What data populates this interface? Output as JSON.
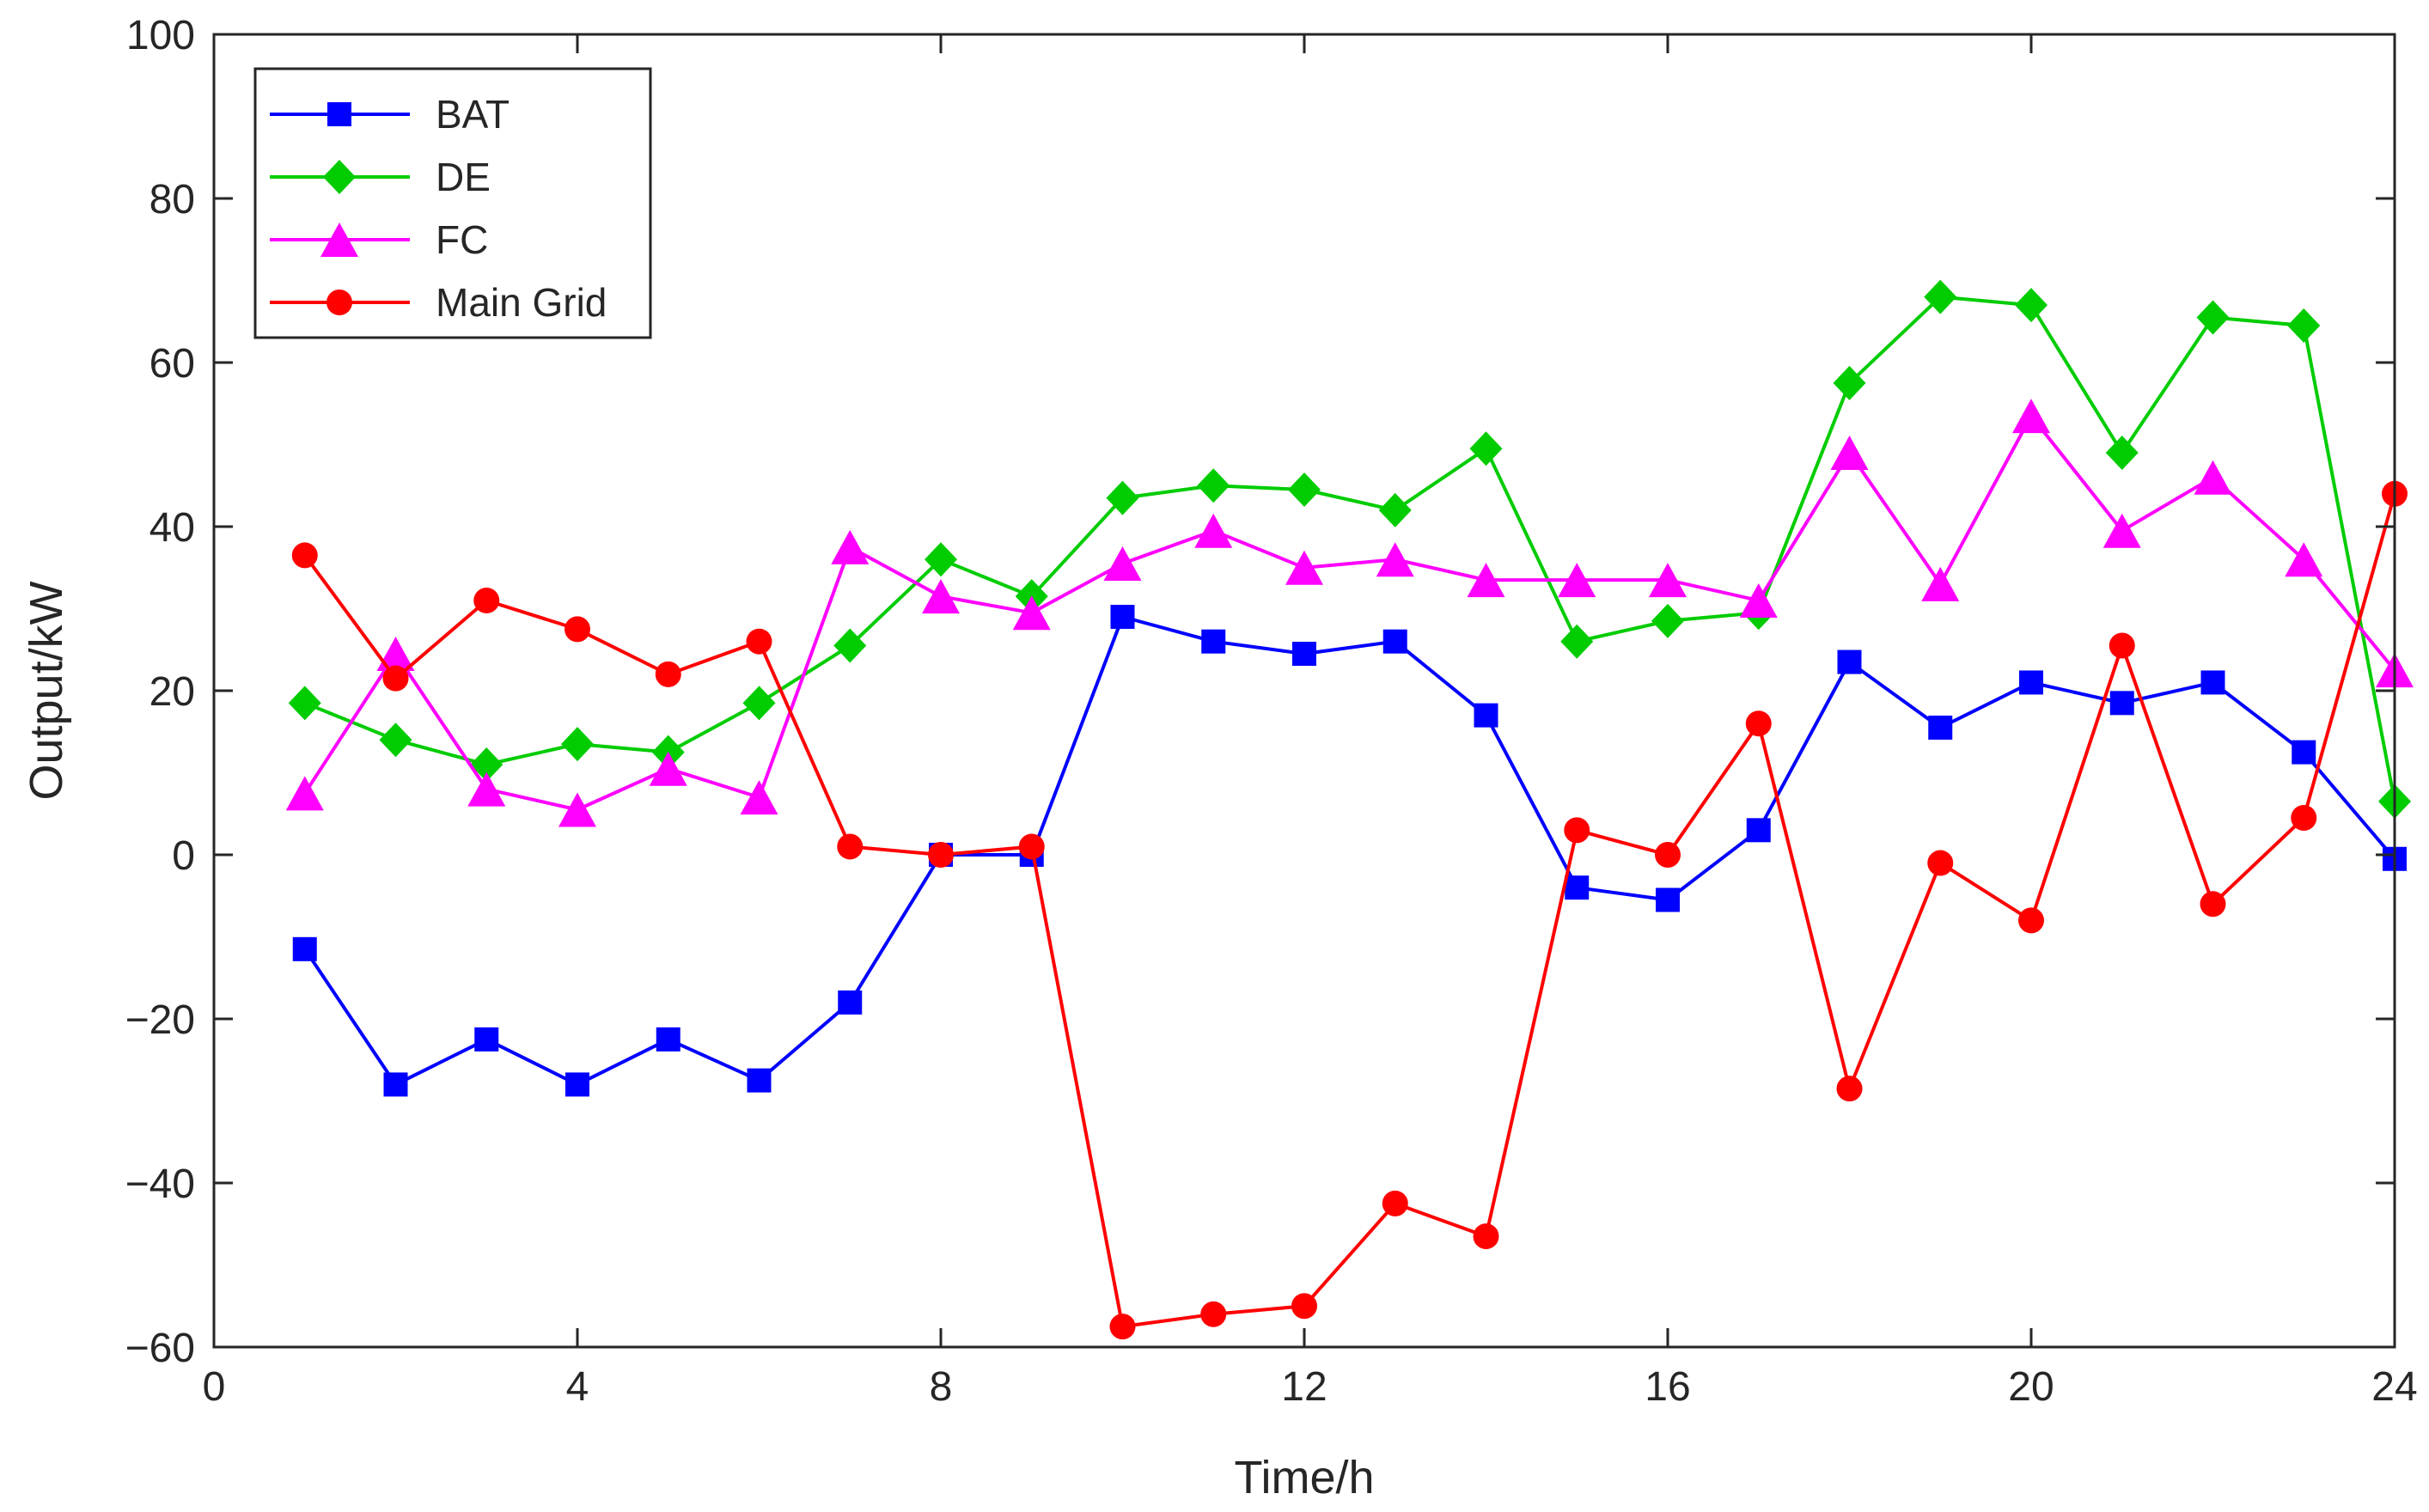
{
  "chart_data": {
    "type": "line",
    "title": "",
    "xlabel": "Time/h",
    "ylabel": "Output/kW",
    "xlim": [
      0,
      24
    ],
    "ylim": [
      -60,
      100
    ],
    "xticks": [
      "0",
      "4",
      "8",
      "12",
      "16",
      "20",
      "24"
    ],
    "yticks": [
      "−60",
      "−40",
      "−20",
      "0",
      "20",
      "40",
      "60",
      "80",
      "100"
    ],
    "grid": false,
    "legend_position": "top-left",
    "x": [
      1,
      2,
      3,
      4,
      5,
      6,
      7,
      8,
      9,
      10,
      11,
      12,
      13,
      14,
      15,
      16,
      17,
      18,
      19,
      20,
      21,
      22,
      23,
      24
    ],
    "series": [
      {
        "name": "BAT",
        "color": "#0000ff",
        "marker": "square",
        "values": [
          -11.5,
          -28,
          -22.5,
          -28,
          -22.5,
          -27.5,
          -18,
          0,
          0,
          29,
          26,
          24.5,
          26,
          17,
          -4,
          -5.5,
          3,
          23.5,
          15.5,
          21,
          18.5,
          21,
          12.5,
          -0.5
        ]
      },
      {
        "name": "DE",
        "color": "#00cc00",
        "marker": "diamond",
        "values": [
          18.5,
          14,
          11,
          13.5,
          12.5,
          18.5,
          25.5,
          36,
          31.5,
          43.5,
          45,
          44.5,
          42,
          49.5,
          26,
          28.5,
          29.5,
          57.5,
          68,
          67,
          49,
          65.5,
          64.5,
          6.5
        ]
      },
      {
        "name": "FC",
        "color": "#ff00ff",
        "marker": "triangle",
        "values": [
          7.5,
          24.5,
          8,
          5.5,
          10.5,
          7,
          37.5,
          31.5,
          29.5,
          35.5,
          39.5,
          35,
          36,
          33.5,
          33.5,
          33.5,
          31,
          49,
          33,
          53.5,
          39.5,
          46,
          36,
          22.5
        ]
      },
      {
        "name": "Main Grid",
        "color": "#ff0000",
        "marker": "circle",
        "values": [
          36.5,
          21.5,
          31,
          27.5,
          22,
          26,
          1,
          0,
          1,
          -57.5,
          -56,
          -55,
          -42.5,
          -46.5,
          3,
          0,
          16,
          -28.5,
          -1,
          -8,
          25.5,
          -6,
          4.5,
          44
        ]
      }
    ]
  }
}
